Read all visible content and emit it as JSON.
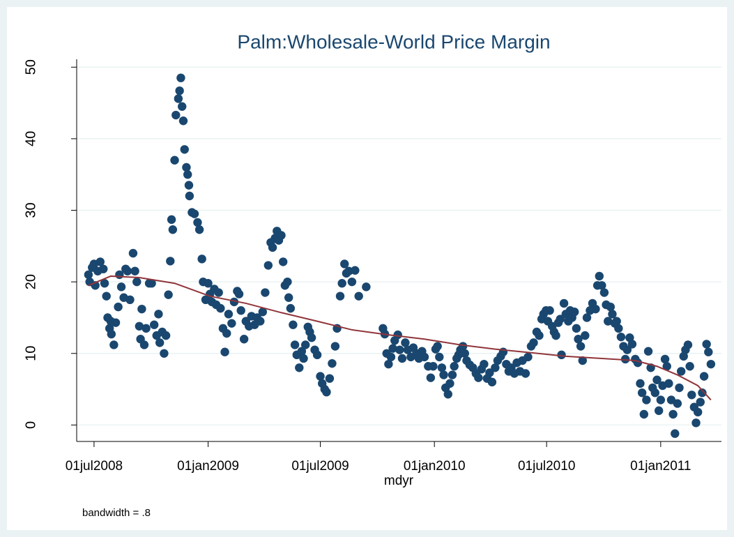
{
  "chart_data": {
    "type": "scatter",
    "title": "Palm:Wholesale-World Price Margin",
    "x_label": "mdyr",
    "note": "bandwidth = .8",
    "xlim": [
      "2008-06-03",
      "2011-04-09"
    ],
    "ylim": [
      -2.3,
      51.1
    ],
    "xticks": [
      {
        "value": "2008-07-01",
        "label": "01jul2008"
      },
      {
        "value": "2009-01-01",
        "label": "01jan2009"
      },
      {
        "value": "2009-07-01",
        "label": "01jul2009"
      },
      {
        "value": "2010-01-01",
        "label": "01jan2010"
      },
      {
        "value": "2010-07-01",
        "label": "01jul2010"
      },
      {
        "value": "2011-01-01",
        "label": "01jan2011"
      }
    ],
    "yticks": [
      0,
      10,
      20,
      30,
      40,
      50
    ],
    "grid": true,
    "series": [
      {
        "type": "scatter",
        "color": "#1a476f",
        "x": [
          "2008-06-22",
          "2008-06-24",
          "2008-06-28",
          "2008-07-01",
          "2008-07-03",
          "2008-07-07",
          "2008-07-11",
          "2008-07-16",
          "2008-07-18",
          "2008-07-21",
          "2008-07-23",
          "2008-07-26",
          "2008-07-28",
          "2008-07-29",
          "2008-08-02",
          "2008-08-05",
          "2008-08-09",
          "2008-08-11",
          "2008-08-14",
          "2008-08-18",
          "2008-08-21",
          "2008-08-24",
          "2008-08-28",
          "2008-09-02",
          "2008-09-05",
          "2008-09-08",
          "2008-09-12",
          "2008-09-14",
          "2008-09-16",
          "2008-09-20",
          "2008-09-23",
          "2008-09-28",
          "2008-10-02",
          "2008-10-06",
          "2008-10-10",
          "2008-10-13",
          "2008-10-15",
          "2008-10-19",
          "2008-10-22",
          "2008-10-25",
          "2008-10-29",
          "2008-11-01",
          "2008-11-03",
          "2008-11-05",
          "2008-11-08",
          "2008-11-10",
          "2008-11-14",
          "2008-11-16",
          "2008-11-18",
          "2008-11-20",
          "2008-11-22",
          "2008-11-24",
          "2008-11-27",
          "2008-11-29",
          "2008-12-01",
          "2008-12-02",
          "2008-12-06",
          "2008-12-10",
          "2008-12-15",
          "2008-12-18",
          "2008-12-22",
          "2008-12-24",
          "2008-12-28",
          "2009-01-01",
          "2009-01-04",
          "2009-01-07",
          "2009-01-11",
          "2009-01-14",
          "2009-01-18",
          "2009-01-21",
          "2009-01-25",
          "2009-01-28",
          "2009-01-31",
          "2009-02-03",
          "2009-02-08",
          "2009-02-12",
          "2009-02-17",
          "2009-02-20",
          "2009-02-23",
          "2009-02-28",
          "2009-03-03",
          "2009-03-08",
          "2009-03-12",
          "2009-03-17",
          "2009-03-21",
          "2009-03-26",
          "2009-03-30",
          "2009-04-03",
          "2009-04-08",
          "2009-04-12",
          "2009-04-15",
          "2009-04-19",
          "2009-04-22",
          "2009-04-25",
          "2009-04-29",
          "2009-05-02",
          "2009-05-05",
          "2009-05-09",
          "2009-05-11",
          "2009-05-14",
          "2009-05-18",
          "2009-05-21",
          "2009-05-24",
          "2009-05-28",
          "2009-06-01",
          "2009-06-04",
          "2009-06-07",
          "2009-06-11",
          "2009-06-14",
          "2009-06-17",
          "2009-06-22",
          "2009-06-26",
          "2009-07-01",
          "2009-07-04",
          "2009-07-08",
          "2009-07-11",
          "2009-07-16",
          "2009-07-20",
          "2009-07-25",
          "2009-07-28",
          "2009-08-02",
          "2009-08-05",
          "2009-08-09",
          "2009-08-12",
          "2009-08-16",
          "2009-08-21",
          "2009-08-26",
          "2009-09-01",
          "2009-09-13",
          "2009-10-10",
          "2009-10-13",
          "2009-10-16",
          "2009-10-19",
          "2009-10-23",
          "2009-10-26",
          "2009-10-29",
          "2009-11-03",
          "2009-11-06",
          "2009-11-10",
          "2009-11-15",
          "2009-11-19",
          "2009-11-24",
          "2009-11-28",
          "2009-12-03",
          "2009-12-07",
          "2009-12-12",
          "2009-12-16",
          "2009-12-22",
          "2009-12-26",
          "2009-12-30",
          "2010-01-03",
          "2010-01-06",
          "2010-01-09",
          "2010-01-13",
          "2010-01-16",
          "2010-01-19",
          "2010-01-23",
          "2010-01-26",
          "2010-01-30",
          "2010-02-02",
          "2010-02-06",
          "2010-02-09",
          "2010-02-12",
          "2010-02-16",
          "2010-02-19",
          "2010-02-22",
          "2010-02-27",
          "2010-03-04",
          "2010-03-09",
          "2010-03-13",
          "2010-03-18",
          "2010-03-22",
          "2010-03-27",
          "2010-03-31",
          "2010-04-04",
          "2010-04-09",
          "2010-04-13",
          "2010-04-18",
          "2010-04-22",
          "2010-04-27",
          "2010-05-01",
          "2010-05-05",
          "2010-05-10",
          "2010-05-14",
          "2010-05-19",
          "2010-05-23",
          "2010-05-28",
          "2010-06-01",
          "2010-06-06",
          "2010-06-10",
          "2010-06-15",
          "2010-06-19",
          "2010-06-23",
          "2010-06-26",
          "2010-06-30",
          "2010-07-03",
          "2010-07-06",
          "2010-07-10",
          "2010-07-13",
          "2010-07-16",
          "2010-07-20",
          "2010-07-23",
          "2010-07-25",
          "2010-07-29",
          "2010-08-01",
          "2010-08-05",
          "2010-08-08",
          "2010-08-11",
          "2010-08-15",
          "2010-08-18",
          "2010-08-21",
          "2010-08-25",
          "2010-08-28",
          "2010-09-01",
          "2010-09-04",
          "2010-09-09",
          "2010-09-13",
          "2010-09-18",
          "2010-09-21",
          "2010-09-24",
          "2010-09-28",
          "2010-10-02",
          "2010-10-05",
          "2010-10-08",
          "2010-10-12",
          "2010-10-15",
          "2010-10-19",
          "2010-10-22",
          "2010-10-25",
          "2010-10-29",
          "2010-11-02",
          "2010-11-05",
          "2010-11-08",
          "2010-11-12",
          "2010-11-16",
          "2010-11-21",
          "2010-11-25",
          "2010-11-29",
          "2010-12-02",
          "2010-12-05",
          "2010-12-09",
          "2010-12-12",
          "2010-12-16",
          "2010-12-19",
          "2010-12-23",
          "2010-12-26",
          "2010-12-29",
          "2011-01-01",
          "2011-01-04",
          "2011-01-08",
          "2011-01-11",
          "2011-01-14",
          "2011-01-18",
          "2011-01-21",
          "2011-01-24",
          "2011-01-28",
          "2011-01-31",
          "2011-02-03",
          "2011-02-07",
          "2011-02-10",
          "2011-02-14",
          "2011-02-17",
          "2011-02-20",
          "2011-02-24",
          "2011-02-27",
          "2011-03-02",
          "2011-03-06",
          "2011-03-09",
          "2011-03-12",
          "2011-03-16",
          "2011-03-19",
          "2011-03-23"
        ],
        "values": [
          21,
          20,
          22,
          22.5,
          19.5,
          21.5,
          22.8,
          21.8,
          19.8,
          18,
          15,
          13.5,
          14.5,
          12.7,
          11.2,
          14.3,
          16.5,
          21,
          19.3,
          17.8,
          21.8,
          21.5,
          17.5,
          24,
          21.5,
          20,
          13.8,
          12,
          16.2,
          11.2,
          13.5,
          19.8,
          19.8,
          14,
          12.5,
          15.5,
          11.5,
          13,
          10,
          12.5,
          18.2,
          22.9,
          28.7,
          27.3,
          37,
          43.3,
          45.6,
          46.7,
          48.5,
          44.5,
          42.5,
          38.5,
          36,
          35,
          33.5,
          32,
          29.7,
          29.5,
          28.3,
          27.3,
          23.2,
          20,
          17.5,
          19.8,
          18.3,
          17.2,
          19,
          16.8,
          18.5,
          16.3,
          13.5,
          10.2,
          12.8,
          15.5,
          14.2,
          17.2,
          18.7,
          18.3,
          16,
          12,
          14.5,
          13.8,
          15.2,
          14,
          15,
          14.5,
          15.8,
          18.5,
          22.3,
          25.5,
          24.8,
          26.1,
          27.1,
          25.8,
          26.5,
          22.8,
          19.5,
          20,
          17.8,
          16.3,
          14,
          11.2,
          9.8,
          8,
          10.3,
          9.3,
          11.2,
          13.7,
          13,
          12.2,
          10.5,
          9.8,
          6.8,
          5.8,
          5,
          4.6,
          6.5,
          8.6,
          11,
          13.5,
          18,
          19.8,
          22.5,
          21.2,
          21.5,
          20,
          21.6,
          18,
          19.3,
          13.5,
          12.7,
          10,
          8.5,
          9.5,
          10.7,
          11.8,
          12.6,
          10.5,
          9.3,
          11.5,
          10.5,
          9.5,
          10.8,
          10,
          9.3,
          10.3,
          9.5,
          8.2,
          6.6,
          8.2,
          10.6,
          11,
          9.5,
          8,
          7,
          5.2,
          4.3,
          5.8,
          7,
          8.2,
          9.3,
          9.8,
          10.5,
          11,
          10,
          9,
          8.4,
          8,
          7.2,
          6.6,
          7.8,
          8.5,
          6.5,
          7.3,
          6,
          8,
          9,
          9.6,
          10.2,
          8.5,
          7.5,
          8,
          7.2,
          8.7,
          7.5,
          9,
          7.2,
          9.5,
          11,
          11.5,
          13,
          12.5,
          14.8,
          15.5,
          16,
          14.5,
          16,
          13.8,
          13,
          12.5,
          14.3,
          14.8,
          9.8,
          17,
          15.5,
          14.5,
          16,
          15,
          15.8,
          13.5,
          12,
          11,
          9,
          12.5,
          15,
          16,
          17,
          16.2,
          19.5,
          20.8,
          19.5,
          18.5,
          16.8,
          14.5,
          16.5,
          15.5,
          14.2,
          14.5,
          13.5,
          12.3,
          11,
          9.2,
          10.5,
          12.2,
          11.3,
          9.2,
          8.7,
          5.8,
          4.5,
          1.5,
          3.5,
          10.3,
          8,
          5.2,
          4.5,
          6.3,
          2,
          3.5,
          5.5,
          9.2,
          8.2,
          5.8,
          3.5,
          1.5,
          -1.2,
          3,
          5.2,
          7.5,
          9.6,
          10.5,
          11.2,
          8.2,
          4.2,
          2.5,
          0.3,
          1.8,
          3.2,
          4.5,
          6.8,
          11.3,
          10.2,
          8.5
        ]
      },
      {
        "type": "line",
        "color": "#90353b",
        "x": [
          "2008-06-22",
          "2008-07-28",
          "2008-09-12",
          "2008-11-08",
          "2009-01-04",
          "2009-03-03",
          "2009-04-29",
          "2009-06-26",
          "2009-08-21",
          "2009-10-19",
          "2009-12-16",
          "2010-02-12",
          "2010-04-09",
          "2010-06-06",
          "2010-08-01",
          "2010-09-28",
          "2010-11-21",
          "2010-12-26",
          "2011-01-28",
          "2011-03-02",
          "2011-03-23"
        ],
        "values": [
          19.5,
          20.8,
          20.6,
          19.8,
          18,
          17,
          15.7,
          14.5,
          13.3,
          12.6,
          12,
          11.2,
          10.6,
          10.1,
          9.6,
          9.3,
          9,
          8.2,
          7,
          5.5,
          3.5
        ]
      }
    ]
  }
}
